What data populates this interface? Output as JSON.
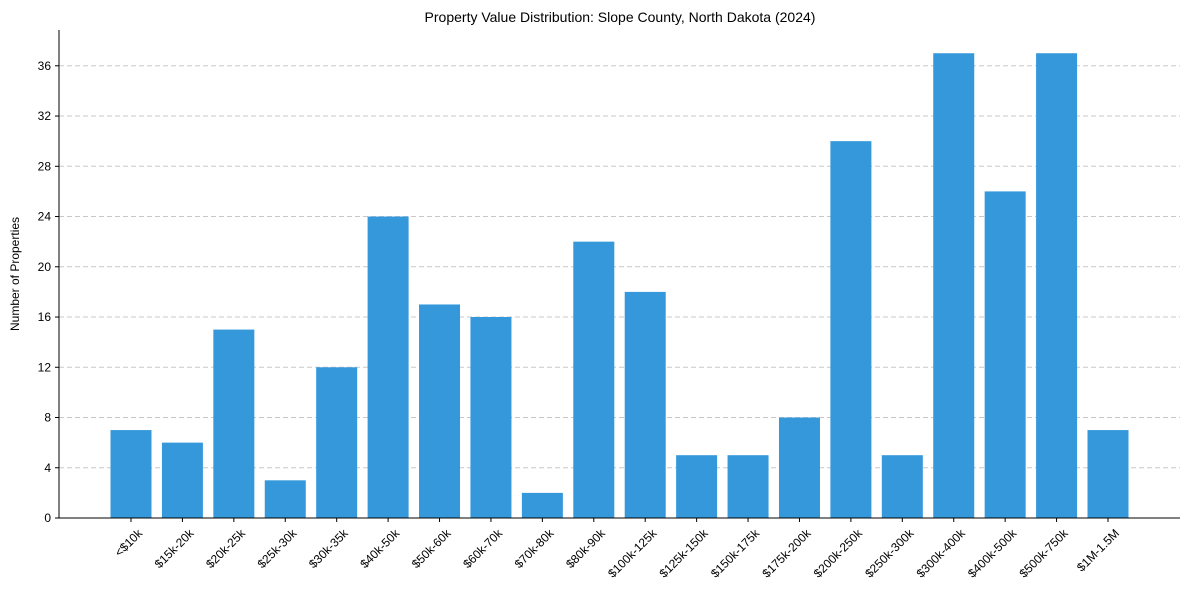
{
  "chart_data": {
    "type": "bar",
    "title": "Property Value Distribution: Slope County, North Dakota (2024)",
    "xlabel": "",
    "ylabel": "Number of Properties",
    "categories": [
      "<$10k",
      "$15k-20k",
      "$20k-25k",
      "$25k-30k",
      "$30k-35k",
      "$40k-50k",
      "$50k-60k",
      "$60k-70k",
      "$70k-80k",
      "$80k-90k",
      "$100k-125k",
      "$125k-150k",
      "$150k-175k",
      "$175k-200k",
      "$200k-250k",
      "$250k-300k",
      "$300k-400k",
      "$400k-500k",
      "$500k-750k",
      "$1M-1.5M"
    ],
    "values": [
      7,
      6,
      15,
      3,
      12,
      24,
      17,
      16,
      2,
      22,
      18,
      5,
      5,
      8,
      30,
      5,
      37,
      26,
      37,
      7
    ],
    "ylim": [
      0,
      38.85
    ],
    "yticks": [
      0,
      4,
      8,
      12,
      16,
      20,
      24,
      28,
      32,
      36
    ],
    "grid": "y-dashed",
    "bar_color": "#3498db",
    "grid_color": "#c8c8c8"
  }
}
